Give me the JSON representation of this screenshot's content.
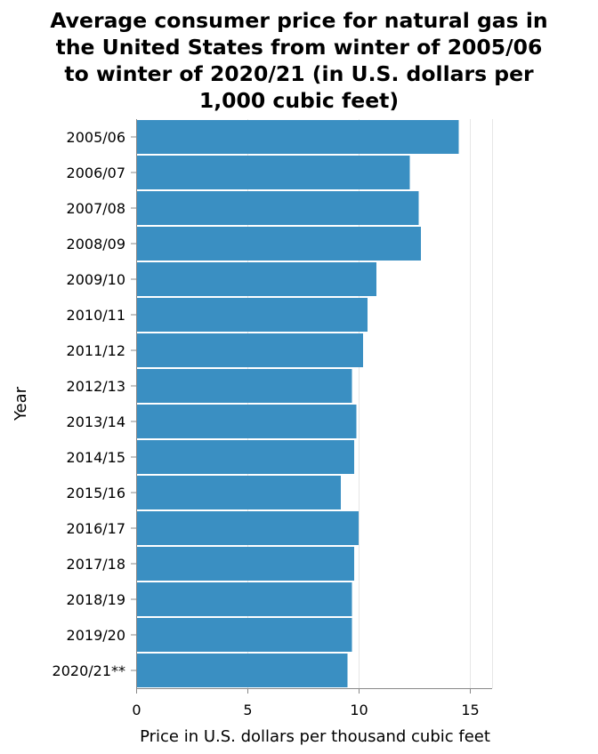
{
  "chart_data": {
    "type": "bar",
    "orientation": "horizontal",
    "title": "Average consumer price for natural gas in the United States from winter of 2005/06 to winter of 2020/21 (in U.S. dollars per 1,000 cubic feet)",
    "title_lines": [
      "Average consumer price for natural gas in",
      "the United States from winter of 2005/06",
      "to winter of 2020/21 (in U.S. dollars per",
      "1,000 cubic feet)"
    ],
    "xlabel": "Price in U.S. dollars per thousand cubic feet",
    "ylabel": "Year",
    "xlim": [
      0,
      16
    ],
    "xticks": [
      0,
      5,
      10,
      15
    ],
    "grid": true,
    "bar_color": "#3a8fc2",
    "categories": [
      "2005/06",
      "2006/07",
      "2007/08",
      "2008/09",
      "2009/10",
      "2010/11",
      "2011/12",
      "2012/13",
      "2013/14",
      "2014/15",
      "2015/16",
      "2016/17",
      "2017/18",
      "2018/19",
      "2019/20",
      "2020/21**"
    ],
    "values": [
      14.5,
      12.3,
      12.7,
      12.8,
      10.8,
      10.4,
      10.2,
      9.7,
      9.9,
      9.8,
      9.2,
      10.0,
      9.8,
      9.7,
      9.7,
      9.5
    ]
  }
}
